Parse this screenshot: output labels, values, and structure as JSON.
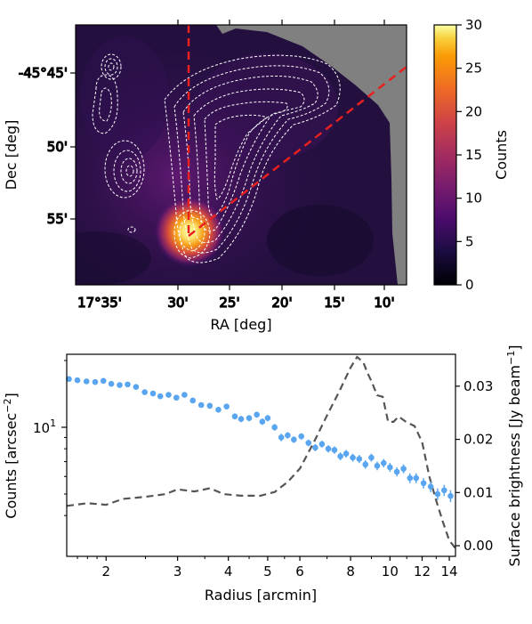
{
  "chart_data": [
    {
      "type": "heatmap",
      "xlabel": "RA [deg]",
      "ylabel": "Dec [deg]",
      "x_ticks": [
        "17°35'",
        "30'",
        "25'",
        "20'",
        "15'",
        "10'"
      ],
      "y_ticks": [
        "-45°45'",
        "50'",
        "55'"
      ],
      "colorbar": {
        "label": "Counts",
        "range": [
          0,
          30
        ],
        "ticks": [
          "0",
          "5",
          "10",
          "15",
          "20",
          "25",
          "30"
        ],
        "colormap": "inferno"
      },
      "overlays": {
        "radio_contours": "white dashed",
        "sector_lines": "red dashed",
        "masked_region": "gray"
      }
    },
    {
      "type": "line",
      "xlabel": "Radius [arcmin]",
      "ylabel": "Counts [arcsec$^{-2}$]",
      "ylabel_parts": [
        "Counts [arcsec",
        "−2",
        "]"
      ],
      "y2label_parts": [
        "Surface brightness [Jy beam",
        "−1",
        "]"
      ],
      "x_scale": "log",
      "y_scale": "log",
      "xlim": [
        1.6,
        14.5
      ],
      "x_ticks": [
        "2",
        "3",
        "4",
        "5",
        "6",
        "8",
        "10",
        "12",
        "14"
      ],
      "y_tick_label": "10",
      "y_tick_exp": "1",
      "y2lim": [
        -0.002,
        0.036
      ],
      "y2_ticks": [
        "0.00",
        "0.01",
        "0.02",
        "0.03"
      ],
      "series": [
        {
          "kind": "points_with_error",
          "color": "#5aa5f0",
          "x": [
            1.62,
            1.7,
            1.79,
            1.88,
            1.97,
            2.06,
            2.16,
            2.26,
            2.37,
            2.49,
            2.61,
            2.72,
            2.85,
            2.98,
            3.12,
            3.27,
            3.43,
            3.6,
            3.78,
            3.96,
            4.15,
            4.3,
            4.5,
            4.7,
            4.85,
            5.0,
            5.2,
            5.4,
            5.6,
            5.8,
            6.05,
            6.3,
            6.55,
            6.8,
            7.05,
            7.3,
            7.55,
            7.8,
            8.1,
            8.4,
            8.7,
            9.0,
            9.3,
            9.65,
            10.0,
            10.4,
            10.8,
            11.2,
            11.6,
            12.1,
            12.6,
            13.1,
            13.6,
            14.1
          ],
          "y": [
            16.5,
            16.3,
            16.1,
            16.0,
            16.2,
            15.7,
            15.5,
            15.6,
            15.2,
            14.4,
            14.2,
            13.8,
            14.0,
            13.6,
            14.0,
            13.2,
            12.6,
            12.5,
            12.0,
            12.4,
            11.2,
            10.9,
            11.0,
            11.4,
            10.6,
            11.0,
            10.0,
            9.0,
            9.2,
            8.8,
            9.1,
            8.5,
            8.1,
            8.4,
            8.0,
            7.9,
            7.4,
            7.6,
            7.3,
            7.2,
            6.8,
            7.3,
            6.7,
            6.9,
            6.6,
            6.3,
            6.5,
            5.9,
            5.9,
            5.6,
            5.4,
            5.0,
            5.2,
            4.9
          ],
          "yerr": [
            0.35,
            0.35,
            0.35,
            0.35,
            0.35,
            0.35,
            0.35,
            0.35,
            0.35,
            0.35,
            0.35,
            0.35,
            0.35,
            0.35,
            0.35,
            0.35,
            0.35,
            0.35,
            0.35,
            0.35,
            0.35,
            0.35,
            0.35,
            0.35,
            0.35,
            0.35,
            0.35,
            0.35,
            0.3,
            0.3,
            0.3,
            0.3,
            0.3,
            0.3,
            0.3,
            0.3,
            0.3,
            0.3,
            0.3,
            0.3,
            0.3,
            0.3,
            0.3,
            0.3,
            0.3,
            0.3,
            0.3,
            0.3,
            0.3,
            0.3,
            0.3,
            0.3,
            0.3,
            0.3
          ]
        },
        {
          "kind": "dashed_line",
          "axis": "right",
          "color": "#555555",
          "x": [
            1.6,
            1.8,
            2.0,
            2.2,
            2.5,
            2.8,
            3.0,
            3.3,
            3.6,
            3.9,
            4.3,
            4.8,
            5.2,
            5.6,
            6.0,
            6.5,
            7.0,
            7.5,
            8.0,
            8.3,
            8.6,
            8.8,
            9.0,
            9.3,
            9.6,
            9.9,
            10.2,
            10.5,
            11.0,
            11.5,
            12.0,
            12.5,
            13.0,
            13.5,
            14.0,
            14.5
          ],
          "y": [
            0.0075,
            0.008,
            0.0077,
            0.0088,
            0.0092,
            0.0097,
            0.0106,
            0.0102,
            0.0108,
            0.0097,
            0.0094,
            0.0094,
            0.0101,
            0.012,
            0.0145,
            0.0195,
            0.0245,
            0.029,
            0.0335,
            0.0355,
            0.0345,
            0.0325,
            0.031,
            0.0283,
            0.028,
            0.0233,
            0.0233,
            0.0243,
            0.0232,
            0.0225,
            0.0195,
            0.013,
            0.0085,
            0.0045,
            0.001,
            -0.0005
          ]
        }
      ]
    }
  ]
}
